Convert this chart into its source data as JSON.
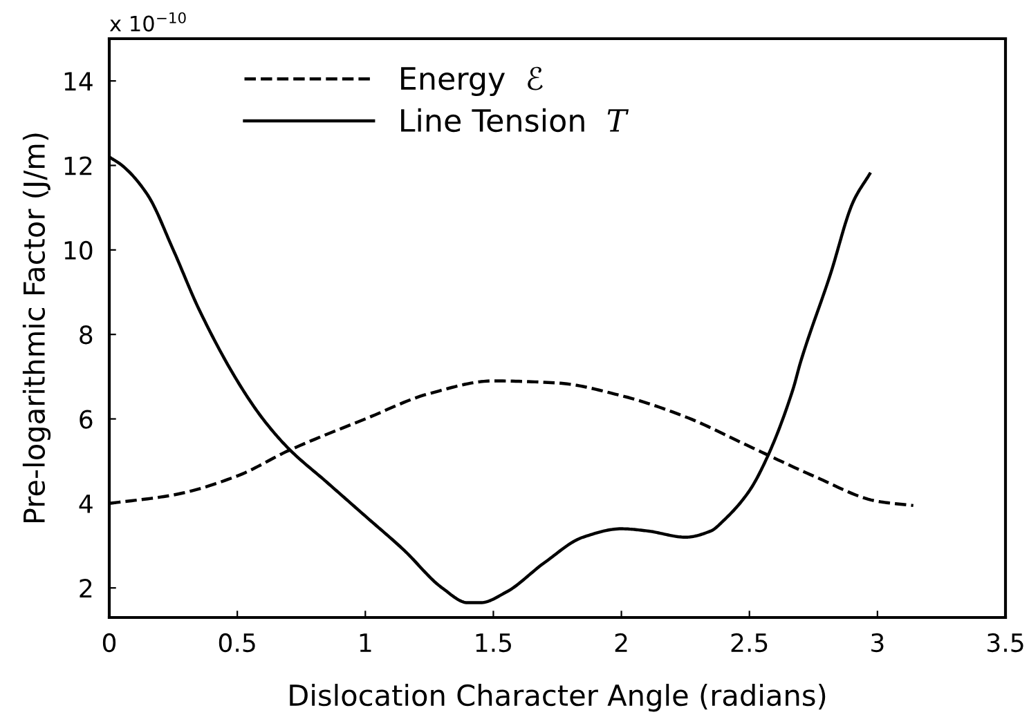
{
  "chart_data": {
    "type": "line",
    "xlabel": "Dislocation Character Angle (radians)",
    "ylabel": "Pre-logarithmic Factor (J/m)",
    "annotations": [
      "x 10$^{−10}$"
    ],
    "xlim": [
      0,
      3.5
    ],
    "xticks": [
      0,
      0.5,
      1,
      1.5,
      2,
      2.5,
      3,
      3.5
    ],
    "ylim": [
      1.3,
      15
    ],
    "yticks": [
      2,
      4,
      6,
      8,
      10,
      12,
      14
    ],
    "grid": false,
    "legend": "top left",
    "series": [
      {
        "name": "Energy  ℰ",
        "color": "#000000",
        "line_style": "dashed",
        "x": [
          0,
          0.25,
          0.5,
          0.7,
          1.0,
          1.25,
          1.5,
          1.75,
          2.0,
          2.25,
          2.5,
          2.75,
          3.0,
          3.14
        ],
        "values": [
          4.0,
          4.2,
          4.65,
          5.25,
          6.0,
          6.6,
          6.9,
          6.85,
          6.55,
          6.05,
          5.35,
          4.65,
          4.05,
          3.95
        ]
      },
      {
        "name": "Line Tension  𝑇",
        "color": "#000000",
        "line_style": "solid",
        "x": [
          0,
          0.05,
          0.15,
          0.25,
          0.35,
          0.5,
          0.6,
          0.7,
          0.85,
          1.0,
          1.15,
          1.3,
          1.4,
          1.45,
          1.55,
          1.7,
          1.85,
          2.0,
          2.1,
          2.25,
          2.35,
          2.4,
          2.5,
          2.57,
          2.67,
          2.7,
          2.815,
          2.906,
          2.97
        ],
        "values": [
          12.2,
          12.0,
          11.3,
          10.0,
          8.6,
          6.9,
          6.0,
          5.3,
          4.5,
          3.7,
          2.9,
          2.0,
          1.65,
          1.65,
          1.9,
          2.6,
          3.2,
          3.4,
          3.35,
          3.2,
          3.35,
          3.6,
          4.3,
          5.1,
          6.7,
          7.35,
          9.4,
          11.15,
          11.8
        ]
      }
    ]
  }
}
